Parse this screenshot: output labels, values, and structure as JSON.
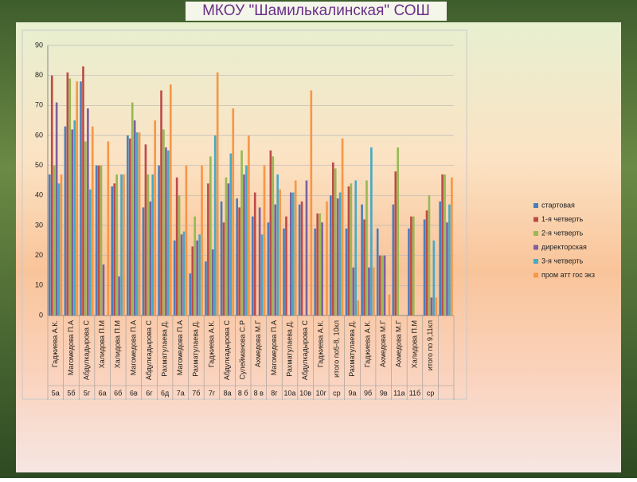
{
  "chart_data": {
    "type": "bar",
    "title": "МКОУ \"Шамилькалинская\" СОШ",
    "categories": [
      "Гаджиева А.К.",
      "Магомедова П.А",
      "Абдулкадырова С",
      "Халидова П.М",
      "Халидова П.М",
      "Магомедова П.А",
      "Абдулкадырова С",
      "Рахматулаева Д.",
      "Магомедова П.А",
      "Рахматулаева Д.",
      "Гаджиева А.К.",
      "Абдулкадырова С",
      "Сулейманова С.Р",
      "Ахмедова  М.Г",
      "Магомедова П.А",
      "Рахматулаева Д.",
      "Абдулкадырова С",
      "Гаджиева А.К.",
      "итого по5-8, 10кл",
      "Рахматулаева Д.",
      "Гаджиева А.К.",
      "Ахмедова  М.Г",
      "Ахмедова  М.Г",
      "Халидова П.М",
      "итого по 9,11кл",
      null
    ],
    "classes": [
      "5а",
      "5б",
      "5г",
      "6а",
      "6б",
      "6в",
      "6г",
      "6д",
      "7а",
      "7б",
      "7г",
      "8а",
      "8 б",
      "8 в",
      "8г",
      "10а",
      "10в",
      "10г",
      "ср",
      "9а",
      "9б",
      "9в",
      "11а",
      "11б",
      "ср",
      null
    ],
    "series": [
      {
        "name": "стартовая",
        "color": "#4a7ebb",
        "values": [
          47,
          63,
          78,
          50,
          43,
          60,
          36,
          50,
          25,
          14,
          18,
          38,
          39,
          33,
          31,
          29,
          37,
          29,
          40,
          29,
          37,
          29,
          37,
          29,
          32,
          38
        ]
      },
      {
        "name": "1-я четверть",
        "color": "#be4b48",
        "values": [
          80,
          81,
          83,
          50,
          44,
          59,
          57,
          75,
          46,
          23,
          44,
          31,
          36,
          41,
          55,
          33,
          38,
          34,
          51,
          43,
          32,
          20,
          48,
          33,
          35,
          47
        ]
      },
      {
        "name": "2-я четверть",
        "color": "#98b954",
        "values": [
          50,
          79,
          58,
          50,
          47,
          71,
          47,
          62,
          40,
          33,
          53,
          46,
          55,
          null,
          53,
          null,
          null,
          34,
          49,
          44,
          45,
          20,
          56,
          33,
          40,
          47
        ]
      },
      {
        "name": "директорская",
        "color": "#7d60a0",
        "values": [
          71,
          62,
          69,
          17,
          13,
          65,
          38,
          56,
          27,
          25,
          22,
          44,
          47,
          36,
          37,
          41,
          45,
          31,
          39,
          16,
          16,
          20,
          null,
          null,
          6,
          31
        ]
      },
      {
        "name": "3-я четверть",
        "color": "#46aac5",
        "values": [
          44,
          65,
          42,
          null,
          47,
          61,
          47,
          55,
          28,
          27,
          60,
          54,
          50,
          27,
          47,
          41,
          null,
          null,
          41,
          45,
          56,
          null,
          null,
          null,
          25,
          37
        ]
      },
      {
        "name": "пром атт гос экз",
        "color": "#f79646",
        "values": [
          47,
          78,
          63,
          58,
          47,
          61,
          65,
          77,
          50,
          50,
          81,
          69,
          60,
          50,
          42,
          45,
          75,
          38,
          59,
          5,
          16,
          7,
          null,
          null,
          6,
          46
        ]
      }
    ],
    "ylim": [
      0,
      90
    ],
    "yticks": [
      0,
      10,
      20,
      30,
      40,
      50,
      60,
      70,
      80,
      90
    ],
    "grid": true
  }
}
